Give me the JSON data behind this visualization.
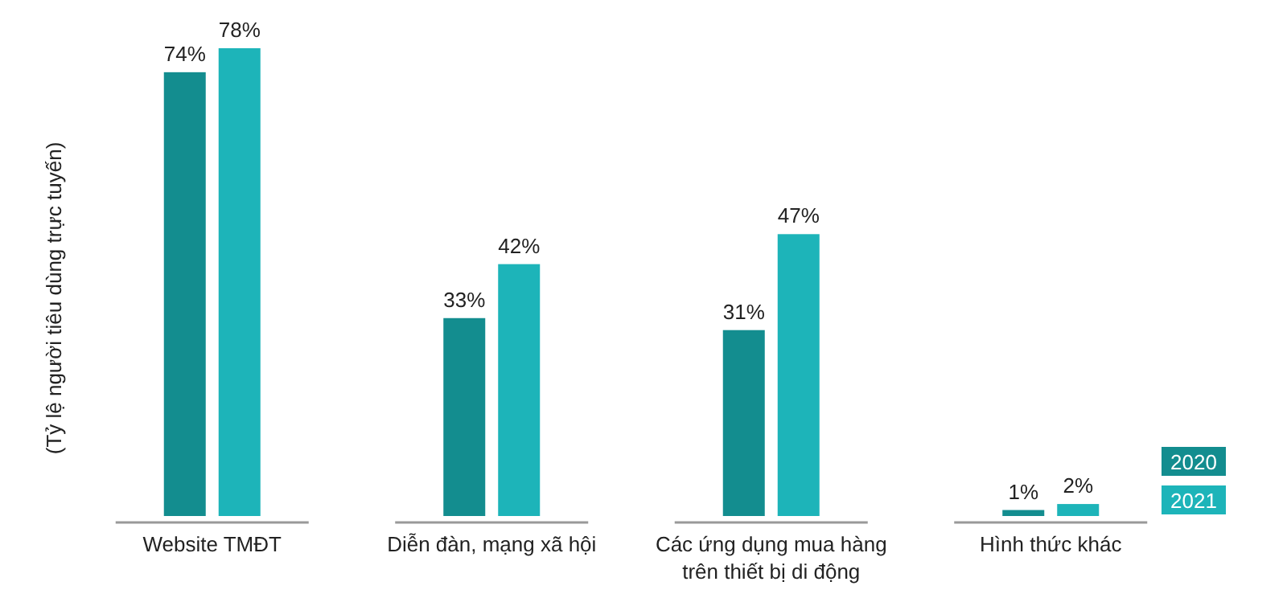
{
  "chart_data": {
    "type": "bar",
    "ylabel": "(Tỷ lệ người tiêu dùng trực tuyến)",
    "categories": [
      "Website TMĐT",
      "Diễn đàn, mạng xã hội",
      "Các ứng dụng mua hàng trên thiết bị di động",
      "Hình thức khác"
    ],
    "series": [
      {
        "name": "2020",
        "color": "#138d8f",
        "values": [
          74,
          33,
          31,
          1
        ],
        "value_labels": [
          "74%",
          "33%",
          "31%",
          "1%"
        ]
      },
      {
        "name": "2021",
        "color": "#1db4b9",
        "values": [
          78,
          42,
          47,
          2
        ],
        "value_labels": [
          "78%",
          "42%",
          "47%",
          "2%"
        ]
      }
    ],
    "legend": "bottom right"
  }
}
